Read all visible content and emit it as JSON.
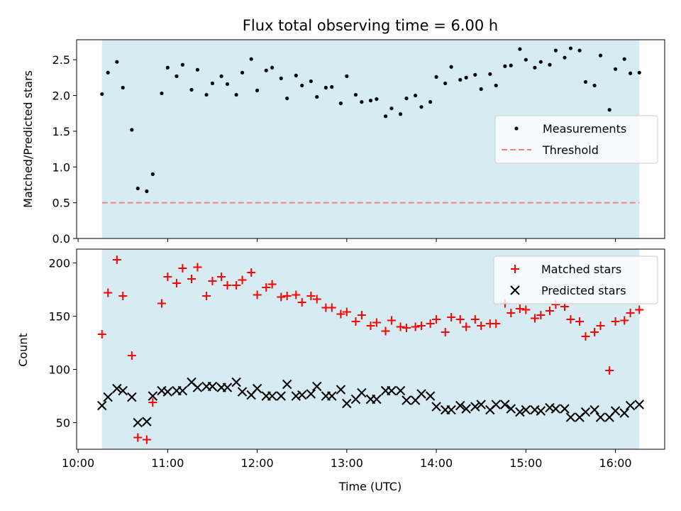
{
  "chart_data": [
    {
      "type": "scatter",
      "title": "Flux total observing time = 6.00 h",
      "xlabel": "",
      "ylabel": "Matched/Predicted stars",
      "ylim": [
        0,
        2.78
      ],
      "yticks": [
        "0.0",
        "0.5",
        "1.0",
        "1.5",
        "2.0",
        "2.5"
      ],
      "x_range": [
        "09:59",
        "16:33"
      ],
      "shaded_span": [
        "10:16",
        "16:16"
      ],
      "threshold": 0.5,
      "legend": {
        "placement": "center-right",
        "entries": [
          "Measurements",
          "Threshold"
        ]
      },
      "colors": {
        "measurements": "#000000",
        "threshold": "#f08080",
        "shade": "#add8e6"
      },
      "series": [
        {
          "name": "Measurements",
          "x": [
            "10:16",
            "10:20",
            "10:26",
            "10:30",
            "10:36",
            "10:40",
            "10:46",
            "10:50",
            "10:56",
            "11:00",
            "11:06",
            "11:10",
            "11:16",
            "11:20",
            "11:26",
            "11:30",
            "11:36",
            "11:40",
            "11:46",
            "11:50",
            "11:56",
            "12:00",
            "12:06",
            "12:10",
            "12:16",
            "12:20",
            "12:26",
            "12:30",
            "12:36",
            "12:40",
            "12:46",
            "12:50",
            "12:56",
            "13:00",
            "13:06",
            "13:10",
            "13:16",
            "13:20",
            "13:26",
            "13:30",
            "13:36",
            "13:40",
            "13:46",
            "13:50",
            "13:56",
            "14:00",
            "14:06",
            "14:10",
            "14:16",
            "14:20",
            "14:26",
            "14:30",
            "14:36",
            "14:40",
            "14:46",
            "14:50",
            "14:56",
            "15:00",
            "15:06",
            "15:10",
            "15:16",
            "15:20",
            "15:26",
            "15:30",
            "15:36",
            "15:40",
            "15:46",
            "15:50",
            "15:56",
            "16:00",
            "16:06",
            "16:10",
            "16:16"
          ],
          "y": [
            2.02,
            2.32,
            2.47,
            2.11,
            1.52,
            0.7,
            0.66,
            0.9,
            2.03,
            2.39,
            2.27,
            2.43,
            2.08,
            2.36,
            2.01,
            2.17,
            2.27,
            2.16,
            2.01,
            2.32,
            2.51,
            2.07,
            2.35,
            2.39,
            2.24,
            1.96,
            2.28,
            2.14,
            2.2,
            1.98,
            2.11,
            2.12,
            1.89,
            2.27,
            2.01,
            1.91,
            1.93,
            1.95,
            1.71,
            1.82,
            1.74,
            1.96,
            2.0,
            1.84,
            1.91,
            2.26,
            2.17,
            2.4,
            2.22,
            2.25,
            2.29,
            2.09,
            2.3,
            2.14,
            2.41,
            2.42,
            2.65,
            2.5,
            2.39,
            2.47,
            2.43,
            2.63,
            2.53,
            2.66,
            2.63,
            2.19,
            2.14,
            2.56,
            1.8,
            2.37,
            2.51,
            2.31,
            2.32
          ]
        }
      ]
    },
    {
      "type": "scatter",
      "title": "",
      "xlabel": "Time (UTC)",
      "ylabel": "Count",
      "ylim": [
        25,
        213
      ],
      "yticks": [
        "50",
        "100",
        "150",
        "200"
      ],
      "xticks": [
        "10:00",
        "11:00",
        "12:00",
        "13:00",
        "14:00",
        "15:00",
        "16:00"
      ],
      "x_range": [
        "09:59",
        "16:33"
      ],
      "shaded_span": [
        "10:16",
        "16:16"
      ],
      "legend": {
        "placement": "top-right",
        "entries": [
          "Matched stars",
          "Predicted stars"
        ]
      },
      "colors": {
        "matched": "#ff0000",
        "predicted": "#000000",
        "shade": "#add8e6"
      },
      "series": [
        {
          "name": "Matched stars",
          "x": [
            "10:16",
            "10:20",
            "10:26",
            "10:30",
            "10:36",
            "10:40",
            "10:46",
            "10:50",
            "10:56",
            "11:00",
            "11:06",
            "11:10",
            "11:16",
            "11:20",
            "11:26",
            "11:30",
            "11:36",
            "11:40",
            "11:46",
            "11:50",
            "11:56",
            "12:00",
            "12:06",
            "12:10",
            "12:16",
            "12:20",
            "12:26",
            "12:30",
            "12:36",
            "12:40",
            "12:46",
            "12:50",
            "12:56",
            "13:00",
            "13:06",
            "13:10",
            "13:16",
            "13:20",
            "13:26",
            "13:30",
            "13:36",
            "13:40",
            "13:46",
            "13:50",
            "13:56",
            "14:00",
            "14:06",
            "14:10",
            "14:16",
            "14:20",
            "14:26",
            "14:30",
            "14:36",
            "14:40",
            "14:46",
            "14:50",
            "14:56",
            "15:00",
            "15:06",
            "15:10",
            "15:16",
            "15:20",
            "15:26",
            "15:30",
            "15:36",
            "15:40",
            "15:46",
            "15:50",
            "15:56",
            "16:00",
            "16:06",
            "16:10",
            "16:16"
          ],
          "y": [
            133,
            172,
            203,
            169,
            113,
            36,
            34,
            69,
            162,
            187,
            181,
            195,
            185,
            196,
            169,
            183,
            187,
            179,
            179,
            184,
            191,
            170,
            177,
            180,
            168,
            169,
            170,
            163,
            169,
            166,
            158,
            158,
            152,
            154,
            145,
            151,
            141,
            144,
            136,
            146,
            140,
            139,
            140,
            141,
            143,
            147,
            135,
            149,
            147,
            140,
            147,
            141,
            143,
            143,
            162,
            153,
            157,
            156,
            148,
            151,
            155,
            161,
            159,
            147,
            145,
            131,
            135,
            141,
            99,
            145,
            146,
            153,
            156
          ]
        },
        {
          "name": "Predicted stars",
          "x": [
            "10:16",
            "10:20",
            "10:26",
            "10:30",
            "10:36",
            "10:40",
            "10:46",
            "10:50",
            "10:56",
            "11:00",
            "11:06",
            "11:10",
            "11:16",
            "11:20",
            "11:26",
            "11:30",
            "11:36",
            "11:40",
            "11:46",
            "11:50",
            "11:56",
            "12:00",
            "12:06",
            "12:10",
            "12:16",
            "12:20",
            "12:26",
            "12:30",
            "12:36",
            "12:40",
            "12:46",
            "12:50",
            "12:56",
            "13:00",
            "13:06",
            "13:10",
            "13:16",
            "13:20",
            "13:26",
            "13:30",
            "13:36",
            "13:40",
            "13:46",
            "13:50",
            "13:56",
            "14:00",
            "14:06",
            "14:10",
            "14:16",
            "14:20",
            "14:26",
            "14:30",
            "14:36",
            "14:40",
            "14:46",
            "14:50",
            "14:56",
            "15:00",
            "15:06",
            "15:10",
            "15:16",
            "15:20",
            "15:26",
            "15:30",
            "15:36",
            "15:40",
            "15:46",
            "15:50",
            "15:56",
            "16:00",
            "16:06",
            "16:10",
            "16:16"
          ],
          "y": [
            66,
            74,
            82,
            80,
            74,
            50,
            51,
            75,
            80,
            79,
            80,
            80,
            88,
            83,
            84,
            84,
            83,
            83,
            88,
            79,
            76,
            82,
            75,
            75,
            75,
            86,
            75,
            76,
            77,
            84,
            75,
            75,
            81,
            68,
            72,
            78,
            72,
            72,
            80,
            80,
            80,
            71,
            71,
            77,
            75,
            65,
            62,
            62,
            66,
            63,
            65,
            67,
            62,
            67,
            67,
            63,
            60,
            62,
            62,
            61,
            64,
            63,
            63,
            55,
            55,
            60,
            62,
            55,
            55,
            61,
            59,
            66,
            67
          ]
        }
      ]
    }
  ]
}
